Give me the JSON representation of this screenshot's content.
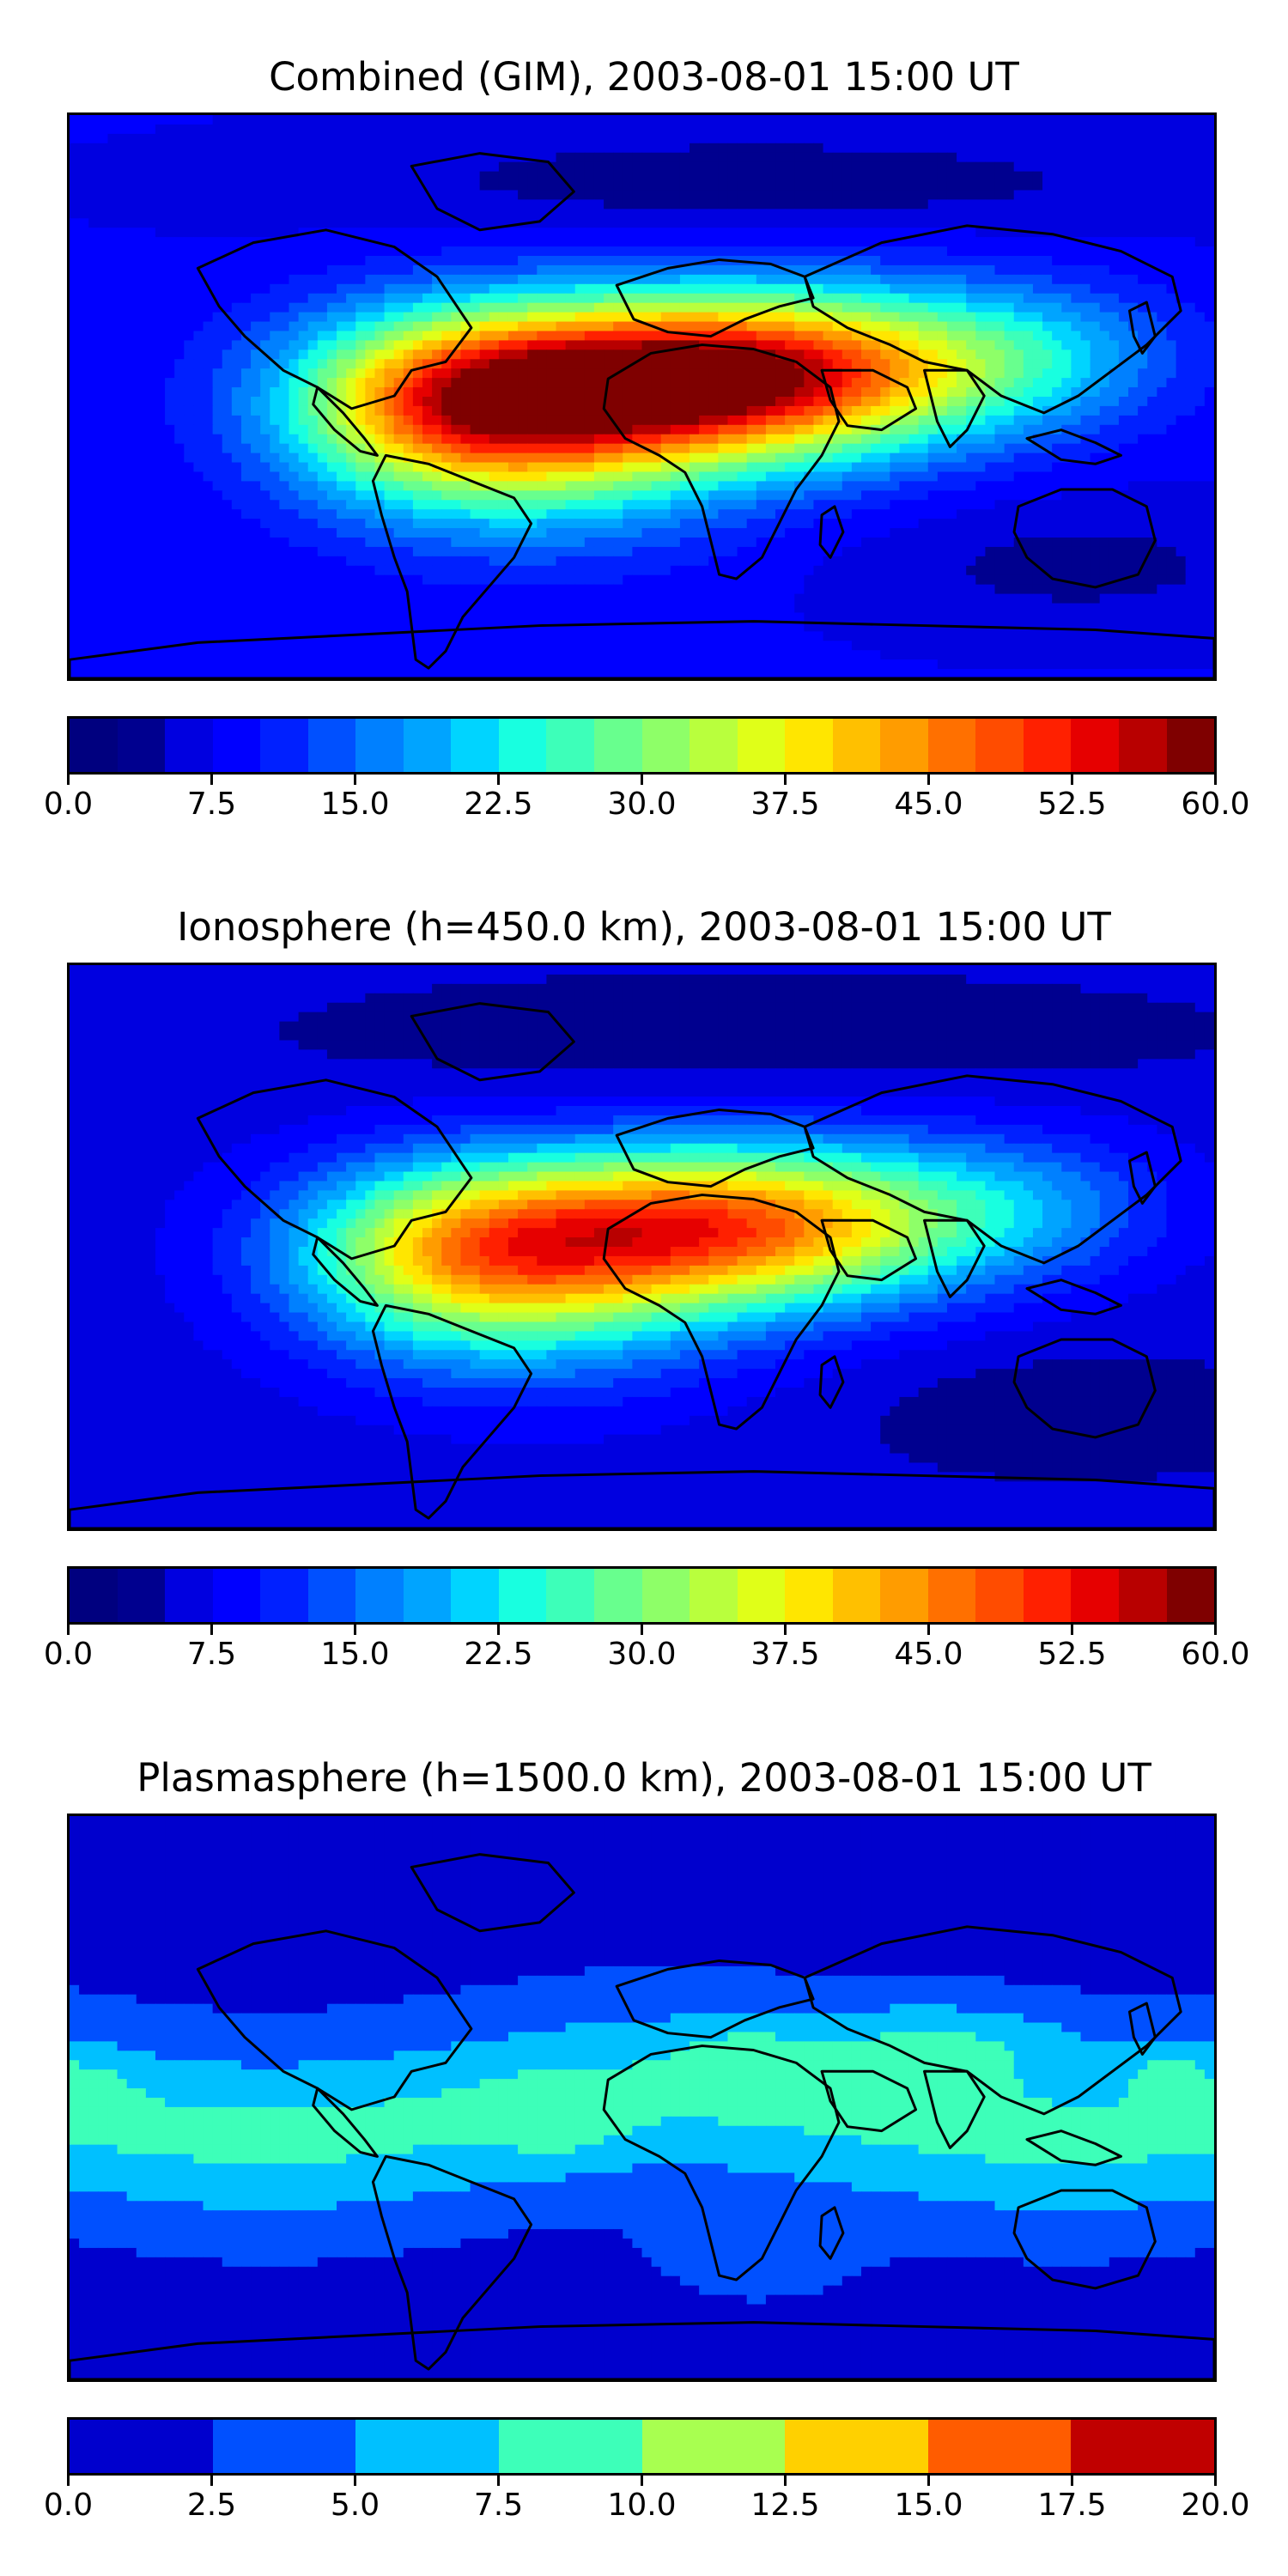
{
  "panels": [
    {
      "title": "Combined (GIM), 2003-08-01 15:00 UT",
      "colorbar": {
        "min": 0,
        "max": 60,
        "levels": 24,
        "ticks": [
          "0.0",
          "7.5",
          "15.0",
          "22.5",
          "30.0",
          "37.5",
          "45.0",
          "52.5",
          "60.0"
        ]
      },
      "field_scale": 1.0,
      "plasma": false
    },
    {
      "title": "Ionosphere  (h=450.0 km), 2003-08-01 15:00 UT",
      "colorbar": {
        "min": 0,
        "max": 60,
        "levels": 24,
        "ticks": [
          "0.0",
          "7.5",
          "15.0",
          "22.5",
          "30.0",
          "37.5",
          "45.0",
          "52.5",
          "60.0"
        ]
      },
      "field_scale": 0.78,
      "plasma": false
    },
    {
      "title": "Plasmasphere (h=1500.0 km), 2003-08-01 15:00 UT",
      "colorbar": {
        "min": 0,
        "max": 20,
        "levels": 8,
        "ticks": [
          "0.0",
          "2.5",
          "5.0",
          "7.5",
          "10.0",
          "12.5",
          "15.0",
          "17.5",
          "20.0"
        ]
      },
      "field_scale": 1.0,
      "plasma": true
    }
  ],
  "colors": {
    "jet24": [
      "#00007f",
      "#00008f",
      "#0000e0",
      "#0000ff",
      "#0020ff",
      "#0050ff",
      "#0080ff",
      "#00a4ff",
      "#00d4ff",
      "#18ffe0",
      "#3dffb9",
      "#68ff8e",
      "#8eff68",
      "#b9ff3d",
      "#e0ff18",
      "#ffe600",
      "#ffc000",
      "#ff9c00",
      "#ff7000",
      "#ff4c00",
      "#ff2000",
      "#e60000",
      "#b80000",
      "#7f0000"
    ],
    "jet8": [
      "#0000cd",
      "#0050ff",
      "#00c0ff",
      "#3dffb9",
      "#a8ff50",
      "#ffd000",
      "#ff5c00",
      "#c00000"
    ],
    "coastline": "#000000"
  }
}
